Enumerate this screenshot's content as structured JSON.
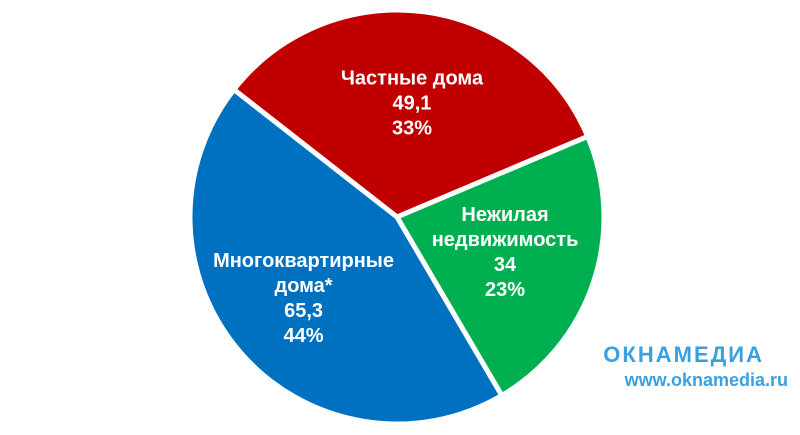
{
  "chart_data": {
    "type": "pie",
    "categories": [
      "Частные дома",
      "Нежилая недвижимость",
      "Многоквартирные дома*"
    ],
    "values": [
      49.1,
      34,
      65.3
    ],
    "value_labels": [
      "49,1",
      "34",
      "65,3"
    ],
    "shares": [
      33,
      23,
      44
    ],
    "share_labels": [
      "33%",
      "23%",
      "44%"
    ],
    "colors": [
      "#c00000",
      "#00b050",
      "#0070c0"
    ]
  },
  "watermark": {
    "logo": "ОКНАМЕДИА",
    "url": "www.oknamedia.ru"
  }
}
